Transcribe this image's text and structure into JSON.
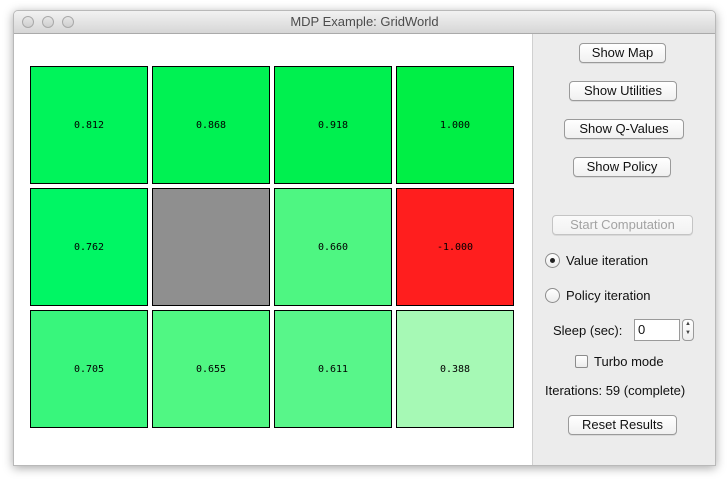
{
  "window": {
    "title": "MDP Example: GridWorld"
  },
  "grid": {
    "rows": [
      [
        {
          "value": "0.812",
          "color": "#00f45a"
        },
        {
          "value": "0.868",
          "color": "#00f253"
        },
        {
          "value": "0.918",
          "color": "#00f04f"
        },
        {
          "value": "1.000",
          "color": "#00ef45"
        }
      ],
      [
        {
          "value": "0.762",
          "color": "#00f664"
        },
        {
          "value": "",
          "color": "#8f8f8f"
        },
        {
          "value": "0.660",
          "color": "#4ef682"
        },
        {
          "value": "-1.000",
          "color": "#ff1e1e"
        }
      ],
      [
        {
          "value": "0.705",
          "color": "#38f67c"
        },
        {
          "value": "0.655",
          "color": "#50f783"
        },
        {
          "value": "0.611",
          "color": "#58f68a"
        },
        {
          "value": "0.388",
          "color": "#a6f9b5"
        }
      ]
    ]
  },
  "controls": {
    "show_map": "Show Map",
    "show_utilities": "Show Utilities",
    "show_q_values": "Show Q-Values",
    "show_policy": "Show Policy",
    "start_computation": "Start Computation",
    "value_iteration": "Value iteration",
    "policy_iteration": "Policy iteration",
    "selected_method": "Value iteration",
    "sleep_label": "Sleep (sec):",
    "sleep_value": "0",
    "turbo_mode": "Turbo mode",
    "turbo_checked": false,
    "iterations": "Iterations: 59 (complete)",
    "reset_results": "Reset Results"
  }
}
